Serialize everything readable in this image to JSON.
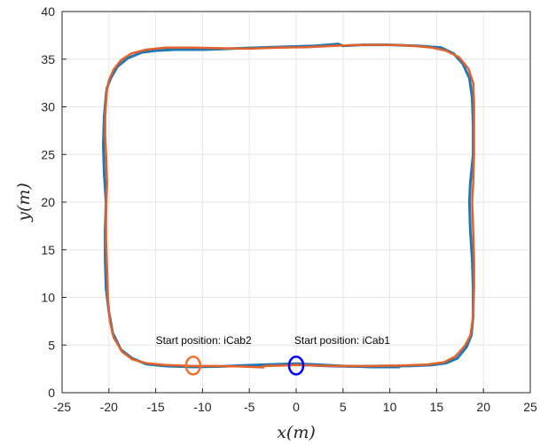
{
  "chart_data": {
    "type": "line",
    "title": "",
    "xlabel": "x(m)",
    "ylabel": "y(m)",
    "xlim": [
      -25,
      25
    ],
    "ylim": [
      0,
      40
    ],
    "xticks": [
      -25,
      -20,
      -15,
      -10,
      -5,
      0,
      5,
      10,
      15,
      20,
      25
    ],
    "yticks": [
      0,
      5,
      10,
      15,
      20,
      25,
      30,
      35,
      40
    ],
    "grid": true,
    "colors": {
      "series_blue": "#1f77b4",
      "series_orange": "#e3622a",
      "marker_icab1": "#0000ff",
      "marker_icab2": "#f07030",
      "grid": "#e6e6e6",
      "axis": "#262626"
    },
    "series": [
      {
        "color": "series_blue",
        "x": [
          11,
          8,
          5,
          3,
          0,
          -3,
          -6,
          -8,
          -11,
          -14,
          -16,
          -17.5,
          -18.7,
          -19.6,
          -20,
          -20.3,
          -20.4,
          -20.4,
          -20.3,
          -20.5,
          -20.6,
          -20.5,
          -20.3,
          -20.2,
          -19.8,
          -19.1,
          -18,
          -16.5,
          -15,
          -13,
          -10,
          -7,
          -4,
          -1,
          2,
          4.5,
          5,
          7,
          10,
          13,
          15.5,
          16.8,
          17.8,
          18.5,
          18.8,
          18.9,
          18.9,
          18.6,
          18.5,
          18.6,
          18.8,
          18.9,
          18.9,
          18.7,
          18.2,
          17.2,
          16,
          14.5,
          12,
          9,
          6,
          3.5,
          1,
          0
        ],
        "y": [
          2.7,
          2.7,
          2.8,
          2.9,
          3.05,
          2.95,
          2.85,
          2.75,
          2.7,
          2.8,
          3.0,
          3.6,
          4.5,
          6.3,
          8.5,
          11,
          14,
          17,
          20,
          23,
          26,
          29,
          31.2,
          32,
          33,
          34.2,
          35.1,
          35.7,
          35.9,
          36.0,
          36.0,
          36.1,
          36.2,
          36.3,
          36.4,
          36.6,
          36.4,
          36.5,
          36.5,
          36.4,
          36.2,
          35.6,
          34.5,
          33,
          31,
          28,
          25,
          22,
          20,
          17,
          14,
          11,
          8,
          6,
          4.8,
          3.6,
          3.1,
          2.9,
          2.8,
          2.8,
          2.75,
          2.8,
          2.9,
          3.0
        ]
      },
      {
        "color": "series_orange",
        "x": [
          -3.5,
          -6,
          -8.5,
          -11,
          -14,
          -16,
          -17.5,
          -18.6,
          -19.5,
          -19.9,
          -20.1,
          -20.2,
          -20.3,
          -20.3,
          -20.2,
          -20.3,
          -20.4,
          -20.4,
          -20.3,
          -20.2,
          -20.0,
          -19.5,
          -18.7,
          -17.6,
          -16,
          -14,
          -11,
          -8,
          -5,
          -2,
          1,
          4,
          7,
          10,
          12.5,
          14.5,
          16,
          17.4,
          18.4,
          18.9,
          19.0,
          19.0,
          19.0,
          18.9,
          18.8,
          18.9,
          19.0,
          19.0,
          18.9,
          18.6,
          18.0,
          17,
          15.8,
          14,
          11,
          8,
          5,
          2,
          0,
          -1.5,
          -3.5
        ],
        "y": [
          2.65,
          2.75,
          2.8,
          2.8,
          2.9,
          3.1,
          3.5,
          4.3,
          5.8,
          7.5,
          10,
          13,
          16,
          19,
          22,
          25,
          27,
          29,
          30.5,
          31.8,
          32.8,
          33.9,
          34.9,
          35.6,
          36.0,
          36.2,
          36.2,
          36.15,
          36.1,
          36.2,
          36.25,
          36.4,
          36.5,
          36.5,
          36.4,
          36.2,
          35.9,
          35.2,
          34.0,
          32.5,
          30.5,
          28,
          25,
          22,
          20,
          17,
          14,
          11,
          8,
          6,
          4.9,
          3.8,
          3.2,
          2.95,
          2.85,
          2.8,
          2.8,
          2.85,
          2.9,
          2.85,
          2.8
        ]
      }
    ],
    "markers": [
      {
        "label": "Start position: iCab1",
        "x": 0,
        "y": 2.85,
        "color": "marker_icab1",
        "label_x": -0.2,
        "label_y": 5.1
      },
      {
        "label": "Start position: iCab2",
        "x": -11,
        "y": 2.85,
        "color": "marker_icab2",
        "label_x": -15,
        "label_y": 5.1
      }
    ]
  }
}
